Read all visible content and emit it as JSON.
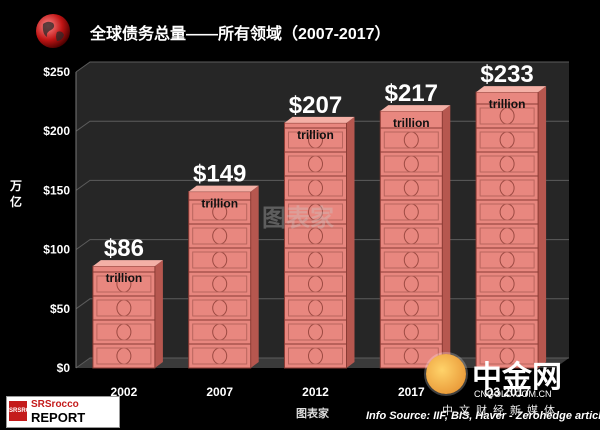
{
  "header": {
    "title": "全球债务总量——所有领域（2007-2017）"
  },
  "chart_data": {
    "type": "bar",
    "title": "全球债务总量——所有领域（2007-2017）",
    "ylabel": "万亿",
    "xlabel": "",
    "categories": [
      "2002",
      "2007",
      "2012",
      "2017",
      "Q3 2017"
    ],
    "values": [
      86,
      149,
      207,
      217,
      233
    ],
    "data_labels": [
      "$86",
      "$149",
      "$207",
      "$217",
      "$233"
    ],
    "unit_label": "trillion",
    "ylim": [
      0,
      250
    ],
    "yticks": [
      0,
      50,
      100,
      150,
      200,
      250
    ],
    "ytick_labels": [
      "$0",
      "$50",
      "$100",
      "$150",
      "$200",
      "$250"
    ],
    "grid": true,
    "legend": "none",
    "colors": {
      "bar": "#e8877f",
      "bar_dark": "#b6574f",
      "bar_light": "#f4b0a6",
      "wall": "#262626",
      "floor": "#3a3a3a",
      "grid": "#5c5c5c"
    }
  },
  "footer": {
    "logo_badge": "SRSROCCO",
    "logo_line1": "SRSrocco",
    "logo_line2": "REPORT",
    "source": "Info Source: IIF, BIS, Haver - Zerohedge article"
  },
  "watermarks": {
    "center": "图表家",
    "footer": "图表家",
    "brand_name": "中金网",
    "brand_url": "CNGOLD.COM.CN",
    "brand_tag": "中文财经新媒体"
  }
}
